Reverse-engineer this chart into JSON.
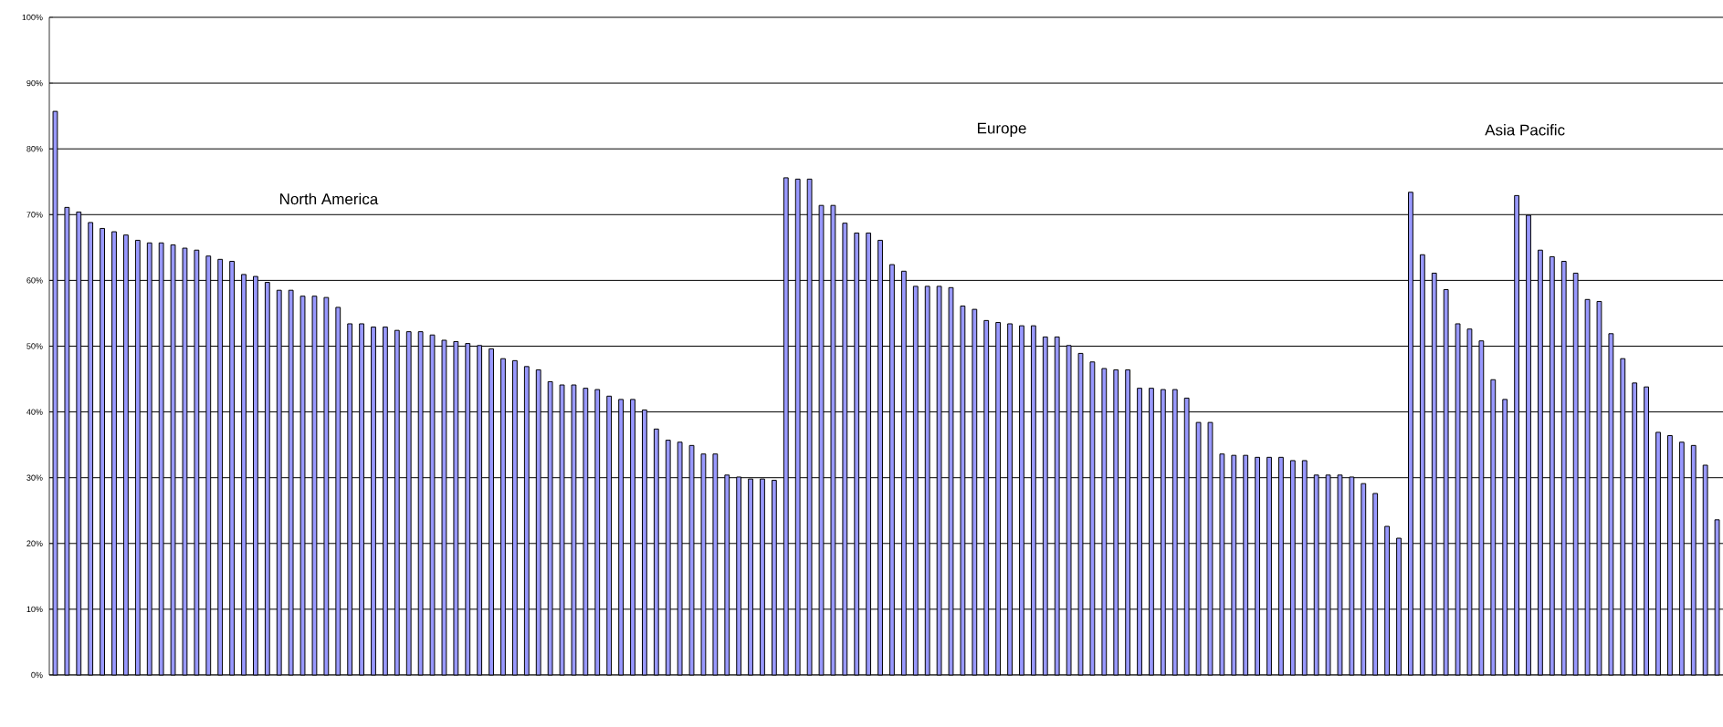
{
  "chart_data": {
    "type": "bar",
    "categories": [
      null,
      null,
      null,
      null,
      null,
      null,
      null,
      null,
      null,
      null,
      null,
      null,
      null,
      null,
      null,
      null,
      null,
      null,
      null,
      null,
      null,
      null,
      null,
      null,
      null,
      null,
      null,
      null,
      null,
      null,
      null,
      null,
      null,
      null,
      null,
      null,
      null,
      null,
      null,
      null,
      null,
      null,
      null,
      null,
      null,
      null,
      null,
      null,
      null,
      null,
      null,
      null,
      null,
      null,
      null,
      null,
      null,
      null,
      null,
      null,
      null,
      null,
      null,
      null,
      null,
      null,
      null,
      null,
      null,
      null,
      null,
      null,
      null,
      null,
      null,
      null,
      null,
      null,
      null,
      null,
      null,
      null,
      null,
      null,
      null,
      null,
      null,
      null,
      null,
      null,
      null,
      null,
      null,
      null,
      null,
      null,
      null,
      null,
      null,
      null,
      null,
      null,
      null,
      null,
      null,
      null,
      null,
      null,
      null,
      null,
      null,
      null,
      null,
      null,
      null,
      null,
      null,
      null,
      null,
      null,
      null,
      null,
      null,
      null,
      null,
      null,
      null,
      null,
      null,
      null,
      null,
      null,
      null,
      null,
      null,
      null,
      null,
      null,
      null,
      null,
      null,
      null
    ],
    "values": [
      85.7,
      71.1,
      70.4,
      68.8,
      67.9,
      67.4,
      66.9,
      66.1,
      65.7,
      65.7,
      65.4,
      64.9,
      64.6,
      63.7,
      63.2,
      62.9,
      60.9,
      60.6,
      59.7,
      58.5,
      58.5,
      57.6,
      57.6,
      57.4,
      55.9,
      53.4,
      53.4,
      52.9,
      52.9,
      52.4,
      52.2,
      52.2,
      51.7,
      50.9,
      50.7,
      50.4,
      50.1,
      49.6,
      48.1,
      47.8,
      46.9,
      46.4,
      44.6,
      44.1,
      44.1,
      43.6,
      43.4,
      42.4,
      41.9,
      41.9,
      40.3,
      37.4,
      35.7,
      35.4,
      34.9,
      33.6,
      33.6,
      30.4,
      30.1,
      29.8,
      29.8,
      29.6,
      75.6,
      75.4,
      75.4,
      71.4,
      71.4,
      68.7,
      67.2,
      67.2,
      66.1,
      62.4,
      61.4,
      59.1,
      59.1,
      59.1,
      58.9,
      56.1,
      55.6,
      53.9,
      53.6,
      53.4,
      53.1,
      53.1,
      51.4,
      51.4,
      50.1,
      48.9,
      47.6,
      46.6,
      46.4,
      46.4,
      43.6,
      43.6,
      43.4,
      43.4,
      42.1,
      38.4,
      38.4,
      33.6,
      33.4,
      33.4,
      33.1,
      33.1,
      33.1,
      32.6,
      32.6,
      30.4,
      30.4,
      30.4,
      30.1,
      29.1,
      27.6,
      22.6,
      20.8,
      73.4,
      63.9,
      61.1,
      58.6,
      53.4,
      52.6,
      50.8,
      44.9,
      41.9,
      72.9,
      69.9,
      64.6,
      63.6,
      62.9,
      61.1,
      57.1,
      56.8,
      51.9,
      48.1,
      44.4,
      43.8,
      36.9,
      36.4,
      35.4,
      34.9,
      31.9,
      23.6
    ],
    "color": "#9999ff",
    "ylim": [
      0,
      100
    ],
    "yticks": [
      {
        "value": 0,
        "label": "0%"
      },
      {
        "value": 10,
        "label": "10%"
      },
      {
        "value": 20,
        "label": "20%"
      },
      {
        "value": 30,
        "label": "30%"
      },
      {
        "value": 40,
        "label": "40%"
      },
      {
        "value": 50,
        "label": "50%"
      },
      {
        "value": 60,
        "label": "60%"
      },
      {
        "value": 70,
        "label": "70%"
      },
      {
        "value": 80,
        "label": "80%"
      },
      {
        "value": 90,
        "label": "90%"
      },
      {
        "value": 100,
        "label": "100%"
      }
    ],
    "grid": "y",
    "tick_labels": "y",
    "annotations": [
      "North America",
      "Europe",
      "Asia Pacific"
    ]
  }
}
